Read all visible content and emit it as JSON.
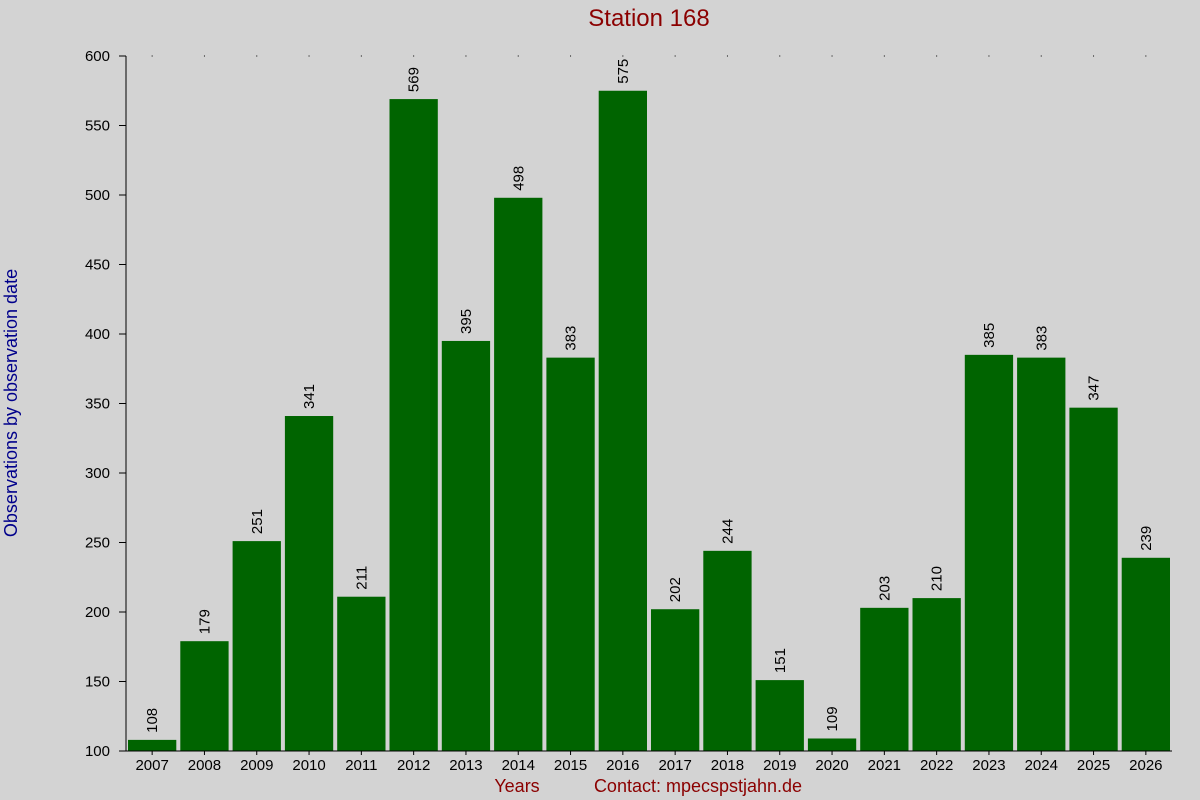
{
  "chart_data": {
    "type": "bar",
    "title": "Station 168",
    "xlabel": "Years",
    "ylabel": "Observations by observation date",
    "contact": "Contact: mpecspstjahn.de",
    "categories": [
      "2007",
      "2008",
      "2009",
      "2010",
      "2011",
      "2012",
      "2013",
      "2014",
      "2015",
      "2016",
      "2017",
      "2018",
      "2019",
      "2020",
      "2021",
      "2022",
      "2023",
      "2024",
      "2025",
      "2026"
    ],
    "values": [
      108,
      179,
      251,
      341,
      211,
      569,
      395,
      498,
      383,
      575,
      202,
      244,
      151,
      109,
      203,
      210,
      385,
      383,
      347,
      239
    ],
    "ylim": [
      100,
      600
    ],
    "yticks": [
      100,
      150,
      200,
      250,
      300,
      350,
      400,
      450,
      500,
      550,
      600
    ],
    "grid": false,
    "colors": {
      "background": "#d3d3d3",
      "bar": "#006400",
      "title": "#8b0000",
      "ylabel": "#00008b",
      "xlabel": "#8b0000",
      "axis": "#000000"
    }
  }
}
